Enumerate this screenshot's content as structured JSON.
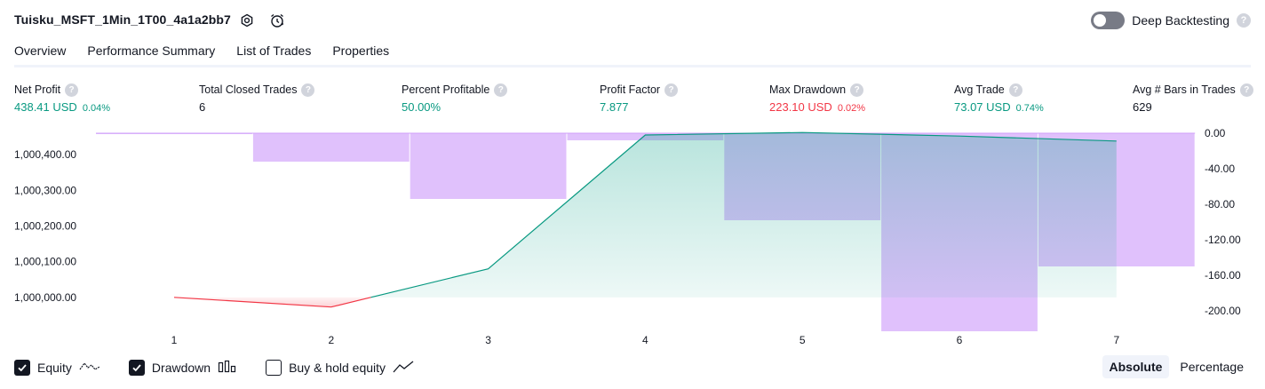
{
  "header": {
    "strategy_name": "Tuisku_MSFT_1Min_1T00_4a1a2bb7",
    "deep_backtesting_label": "Deep Backtesting",
    "help_glyph": "?"
  },
  "tabs": [
    {
      "label": "Overview",
      "active": true
    },
    {
      "label": "Performance Summary",
      "active": false
    },
    {
      "label": "List of Trades",
      "active": false
    },
    {
      "label": "Properties",
      "active": false
    }
  ],
  "metrics": [
    {
      "label": "Net Profit",
      "value": "438.41 USD",
      "pct": "0.04%",
      "color": "#089981"
    },
    {
      "label": "Total Closed Trades",
      "value": "6",
      "pct": "",
      "color": "#131722"
    },
    {
      "label": "Percent Profitable",
      "value": "50.00%",
      "pct": "",
      "color": "#089981"
    },
    {
      "label": "Profit Factor",
      "value": "7.877",
      "pct": "",
      "color": "#089981"
    },
    {
      "label": "Max Drawdown",
      "value": "223.10 USD",
      "pct": "0.02%",
      "color": "#f23645"
    },
    {
      "label": "Avg Trade",
      "value": "73.07 USD",
      "pct": "0.74%",
      "color": "#089981"
    },
    {
      "label": "Avg # Bars in Trades",
      "value": "629",
      "pct": "",
      "color": "#131722"
    }
  ],
  "chart_data": {
    "type": "line",
    "x": [
      1,
      2,
      3,
      4,
      5,
      6,
      7
    ],
    "x_tick_labels": [
      "1",
      "2",
      "3",
      "4",
      "5",
      "6",
      "7"
    ],
    "left_axis": {
      "ticks": [
        "1,000,000.00",
        "1,000,100.00",
        "1,000,200.00",
        "1,000,300.00",
        "1,000,400.00"
      ],
      "range": [
        999900,
        1000460
      ]
    },
    "right_axis": {
      "ticks": [
        "0.00",
        "-40.00",
        "-80.00",
        "-120.00",
        "-160.00",
        "-200.00"
      ],
      "range": [
        -225,
        0
      ]
    },
    "series": [
      {
        "name": "Equity",
        "values": [
          1000000,
          999973,
          1000080,
          1000455,
          1000462,
          1000452,
          1000438
        ],
        "colors": {
          "negative": "#f23645",
          "positive": "#089981"
        }
      },
      {
        "name": "Drawdown",
        "x": [
          1,
          2,
          3,
          4,
          5,
          6,
          7
        ],
        "values": [
          -1,
          -32,
          -74,
          -8,
          -98,
          -223,
          -150
        ],
        "color": "#cf9ffa"
      }
    ]
  },
  "legend": [
    {
      "label": "Equity",
      "checked": true,
      "icon": "equity-line-icon"
    },
    {
      "label": "Drawdown",
      "checked": true,
      "icon": "drawdown-bars-icon"
    },
    {
      "label": "Buy & hold equity",
      "checked": false,
      "icon": "buy-hold-line-icon"
    }
  ],
  "view_mode": {
    "options": [
      "Absolute",
      "Percentage"
    ],
    "selected": "Absolute"
  }
}
